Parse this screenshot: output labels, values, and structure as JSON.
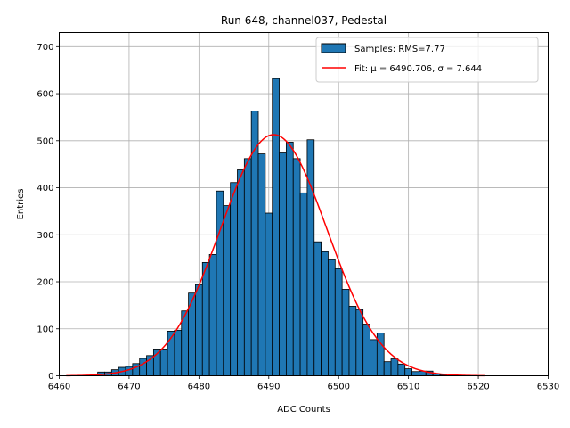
{
  "chart_data": {
    "type": "bar",
    "title": "Run 648, channel037, Pedestal",
    "xlabel": "ADC Counts",
    "ylabel": "Entries",
    "xlim": [
      6460,
      6530
    ],
    "ylim": [
      0,
      730
    ],
    "xticks": [
      "6460",
      "6470",
      "6480",
      "6490",
      "6500",
      "6510",
      "6520",
      "6530"
    ],
    "yticks": [
      "0",
      "100",
      "200",
      "300",
      "400",
      "500",
      "600",
      "700"
    ],
    "grid": true,
    "legend_position": "top-right",
    "bin_width": 1,
    "bins": [
      {
        "x": 6466,
        "y": 8
      },
      {
        "x": 6467,
        "y": 8
      },
      {
        "x": 6468,
        "y": 13
      },
      {
        "x": 6469,
        "y": 18
      },
      {
        "x": 6470,
        "y": 20
      },
      {
        "x": 6471,
        "y": 26
      },
      {
        "x": 6472,
        "y": 37
      },
      {
        "x": 6473,
        "y": 43
      },
      {
        "x": 6474,
        "y": 57
      },
      {
        "x": 6475,
        "y": 57
      },
      {
        "x": 6476,
        "y": 95
      },
      {
        "x": 6477,
        "y": 97
      },
      {
        "x": 6478,
        "y": 138
      },
      {
        "x": 6479,
        "y": 176
      },
      {
        "x": 6480,
        "y": 194
      },
      {
        "x": 6481,
        "y": 241
      },
      {
        "x": 6482,
        "y": 258
      },
      {
        "x": 6483,
        "y": 393
      },
      {
        "x": 6484,
        "y": 362
      },
      {
        "x": 6485,
        "y": 411
      },
      {
        "x": 6486,
        "y": 438
      },
      {
        "x": 6487,
        "y": 462
      },
      {
        "x": 6488,
        "y": 563
      },
      {
        "x": 6489,
        "y": 472
      },
      {
        "x": 6490,
        "y": 346
      },
      {
        "x": 6491,
        "y": 632
      },
      {
        "x": 6492,
        "y": 474
      },
      {
        "x": 6493,
        "y": 497
      },
      {
        "x": 6494,
        "y": 462
      },
      {
        "x": 6495,
        "y": 389
      },
      {
        "x": 6496,
        "y": 502
      },
      {
        "x": 6497,
        "y": 285
      },
      {
        "x": 6498,
        "y": 264
      },
      {
        "x": 6499,
        "y": 247
      },
      {
        "x": 6500,
        "y": 228
      },
      {
        "x": 6501,
        "y": 184
      },
      {
        "x": 6502,
        "y": 148
      },
      {
        "x": 6503,
        "y": 141
      },
      {
        "x": 6504,
        "y": 110
      },
      {
        "x": 6505,
        "y": 77
      },
      {
        "x": 6506,
        "y": 91
      },
      {
        "x": 6507,
        "y": 30
      },
      {
        "x": 6508,
        "y": 36
      },
      {
        "x": 6509,
        "y": 25
      },
      {
        "x": 6510,
        "y": 15
      },
      {
        "x": 6511,
        "y": 9
      },
      {
        "x": 6512,
        "y": 10
      },
      {
        "x": 6513,
        "y": 10
      },
      {
        "x": 6514,
        "y": 4
      },
      {
        "x": 6515,
        "y": 2
      }
    ],
    "series": [
      {
        "name": "Samples: RMS=7.77",
        "type": "histogram",
        "color": "#1f77b4",
        "edgecolor": "#000000"
      },
      {
        "name": "Fit: μ = 6490.706, σ = 7.644",
        "type": "line",
        "color": "#ff0000",
        "mu": 6490.706,
        "sigma": 7.644,
        "amplitude": 513,
        "x_range": [
          6461,
          6521
        ]
      }
    ]
  }
}
